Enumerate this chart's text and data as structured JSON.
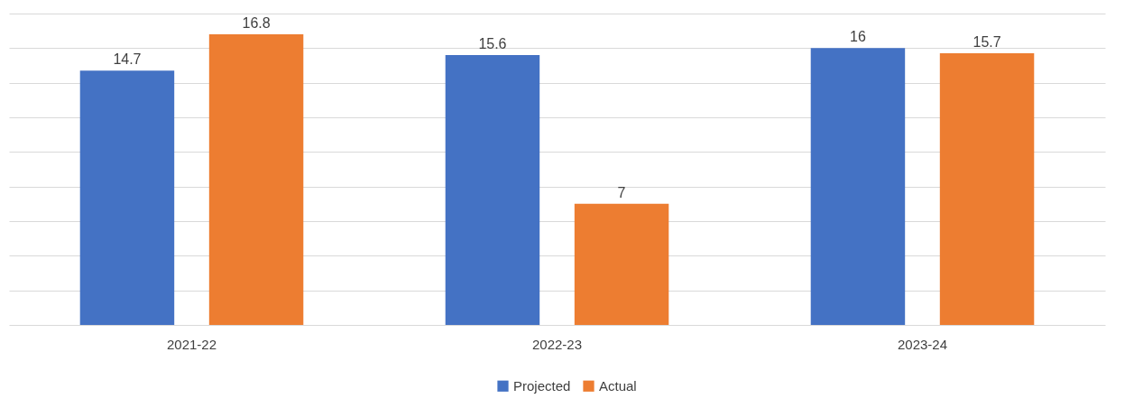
{
  "chart_data": {
    "type": "bar",
    "categories": [
      "2021-22",
      "2022-23",
      "2023-24"
    ],
    "series": [
      {
        "name": "Projected",
        "color": "#4472c4",
        "values": [
          14.7,
          15.6,
          16
        ]
      },
      {
        "name": "Actual",
        "color": "#ed7d31",
        "values": [
          16.8,
          7,
          15.7
        ]
      }
    ],
    "tick_labels": "x",
    "grid": "y",
    "legend": "bottom",
    "data_labels": true
  }
}
